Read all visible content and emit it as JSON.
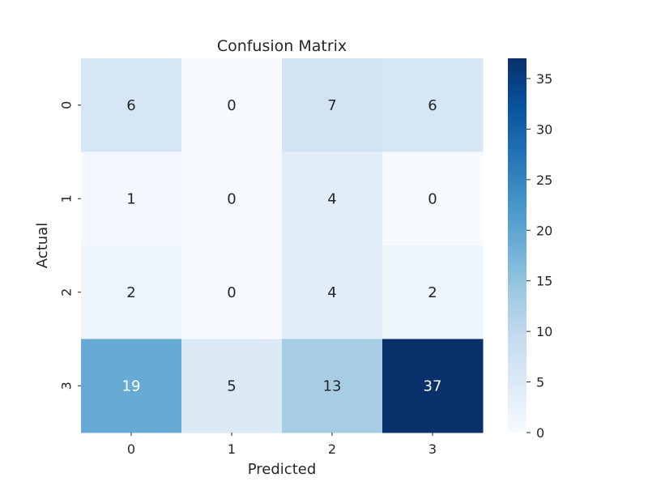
{
  "chart_data": {
    "type": "heatmap",
    "title": "Confusion Matrix",
    "xlabel": "Predicted",
    "ylabel": "Actual",
    "x_categories": [
      "0",
      "1",
      "2",
      "3"
    ],
    "y_categories": [
      "0",
      "1",
      "2",
      "3"
    ],
    "values": [
      [
        6,
        0,
        7,
        6
      ],
      [
        1,
        0,
        4,
        0
      ],
      [
        2,
        0,
        4,
        2
      ],
      [
        19,
        5,
        13,
        37
      ]
    ],
    "colorbar": {
      "min": 0,
      "max": 37,
      "ticks": [
        0,
        5,
        10,
        15,
        20,
        25,
        30,
        35
      ]
    },
    "colormap": "Blues",
    "colors": {
      "low": "#f7fbff",
      "high": "#08306b",
      "text_dark": "#262626",
      "text_light": "#ffffff"
    }
  }
}
